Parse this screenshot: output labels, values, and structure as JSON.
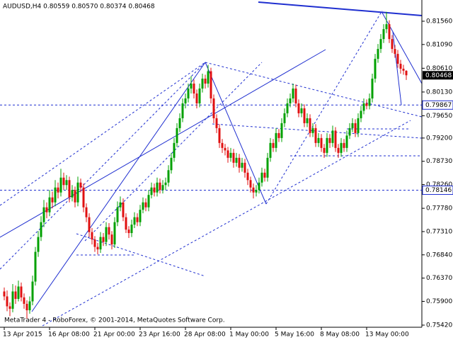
{
  "chart_data": {
    "type": "candlestick",
    "title": "AUDUSD,H4  0.80559 0.80570 0.80374 0.80468",
    "footer": "MetaTrader 4 - RoboForex, © 2001-2014, MetaQuotes Software Corp.",
    "up_color": "#00a000",
    "down_color": "#e01010",
    "ylim": [
      0.75377,
      0.81989
    ],
    "yticks": [
      {
        "value": 0.8156,
        "label": "0.81560"
      },
      {
        "value": 0.8109,
        "label": "0.81090"
      },
      {
        "value": 0.8061,
        "label": "0.80610"
      },
      {
        "value": 0.8013,
        "label": "0.80130"
      },
      {
        "value": 0.7965,
        "label": "0.79650"
      },
      {
        "value": 0.792,
        "label": "0.79200"
      },
      {
        "value": 0.7873,
        "label": "0.78730"
      },
      {
        "value": 0.7826,
        "label": "0.78260"
      },
      {
        "value": 0.7778,
        "label": "0.77780"
      },
      {
        "value": 0.7731,
        "label": "0.77310"
      },
      {
        "value": 0.7684,
        "label": "0.76840"
      },
      {
        "value": 0.7637,
        "label": "0.76370"
      },
      {
        "value": 0.759,
        "label": "0.75900"
      },
      {
        "value": 0.7542,
        "label": "0.75420"
      }
    ],
    "current_price": 0.80468,
    "levels": [
      0.79867,
      0.78146
    ],
    "categories": [
      "13 Apr 2015",
      null,
      null,
      null,
      null,
      null,
      null,
      null,
      null,
      null,
      null,
      null,
      null,
      null,
      null,
      null,
      "16 Apr 08:00",
      null,
      null,
      null,
      null,
      null,
      null,
      null,
      null,
      null,
      null,
      null,
      null,
      null,
      null,
      null,
      "21 Apr 00:00",
      null,
      null,
      null,
      null,
      null,
      null,
      null,
      null,
      null,
      null,
      null,
      null,
      null,
      null,
      null,
      "23 Apr 16:00",
      null,
      null,
      null,
      null,
      null,
      null,
      null,
      null,
      null,
      null,
      null,
      null,
      null,
      null,
      null,
      "28 Apr 08:00",
      null,
      null,
      null,
      null,
      null,
      null,
      null,
      null,
      null,
      null,
      null,
      null,
      null,
      null,
      null,
      "1 May 00:00",
      null,
      null,
      null,
      null,
      null,
      null,
      null,
      null,
      null,
      null,
      null,
      null,
      null,
      null,
      null,
      "5 May 16:00",
      null,
      null,
      null,
      null,
      null,
      null,
      null,
      null,
      null,
      null,
      null,
      null,
      null,
      null,
      null,
      "8 May 08:00",
      null,
      null,
      null,
      null,
      null,
      null,
      null,
      null,
      null,
      null,
      null,
      null,
      null,
      null,
      null,
      "13 May 00:00",
      null,
      null,
      null,
      null,
      null,
      null,
      null,
      null,
      null,
      null,
      null,
      null,
      null,
      null
    ],
    "ohlc": [
      [
        0.761,
        0.7618,
        0.7592,
        0.76
      ],
      [
        0.76,
        0.7612,
        0.757,
        0.758
      ],
      [
        0.758,
        0.7588,
        0.756,
        0.7575
      ],
      [
        0.7575,
        0.7625,
        0.7568,
        0.761
      ],
      [
        0.761,
        0.7622,
        0.7585,
        0.7595
      ],
      [
        0.7595,
        0.7632,
        0.759,
        0.762
      ],
      [
        0.762,
        0.7628,
        0.759,
        0.7598
      ],
      [
        0.7598,
        0.7606,
        0.7575,
        0.7585
      ],
      [
        0.7585,
        0.7592,
        0.7555,
        0.7572
      ],
      [
        0.7572,
        0.76,
        0.7565,
        0.759
      ],
      [
        0.759,
        0.7642,
        0.7582,
        0.763
      ],
      [
        0.763,
        0.77,
        0.7622,
        0.769
      ],
      [
        0.769,
        0.7732,
        0.768,
        0.772
      ],
      [
        0.772,
        0.7762,
        0.7712,
        0.775
      ],
      [
        0.775,
        0.7795,
        0.774,
        0.778
      ],
      [
        0.778,
        0.779,
        0.7758,
        0.777
      ],
      [
        0.777,
        0.7815,
        0.7762,
        0.78
      ],
      [
        0.78,
        0.7812,
        0.7778,
        0.779
      ],
      [
        0.779,
        0.7835,
        0.7782,
        0.782
      ],
      [
        0.782,
        0.783,
        0.7798,
        0.781
      ],
      [
        0.781,
        0.7858,
        0.7802,
        0.784
      ],
      [
        0.784,
        0.785,
        0.7815,
        0.7825
      ],
      [
        0.7825,
        0.7845,
        0.7815,
        0.7835
      ],
      [
        0.7835,
        0.7842,
        0.779,
        0.78
      ],
      [
        0.78,
        0.7825,
        0.7792,
        0.7815
      ],
      [
        0.7815,
        0.7822,
        0.778,
        0.779
      ],
      [
        0.779,
        0.7842,
        0.7782,
        0.783
      ],
      [
        0.783,
        0.7838,
        0.781,
        0.782
      ],
      [
        0.782,
        0.7828,
        0.777,
        0.778
      ],
      [
        0.778,
        0.7788,
        0.775,
        0.776
      ],
      [
        0.776,
        0.7768,
        0.772,
        0.773
      ],
      [
        0.773,
        0.7738,
        0.7705,
        0.7715
      ],
      [
        0.7715,
        0.7722,
        0.769,
        0.77
      ],
      [
        0.77,
        0.7708,
        0.7685,
        0.7695
      ],
      [
        0.7695,
        0.773,
        0.7688,
        0.772
      ],
      [
        0.772,
        0.7728,
        0.7702,
        0.771
      ],
      [
        0.771,
        0.775,
        0.7702,
        0.774
      ],
      [
        0.774,
        0.7748,
        0.7715,
        0.7725
      ],
      [
        0.7725,
        0.7732,
        0.7695,
        0.7705
      ],
      [
        0.7705,
        0.776,
        0.7698,
        0.775
      ],
      [
        0.775,
        0.7792,
        0.7742,
        0.778
      ],
      [
        0.778,
        0.7802,
        0.7772,
        0.779
      ],
      [
        0.779,
        0.7798,
        0.7752,
        0.776
      ],
      [
        0.776,
        0.7768,
        0.7728,
        0.7735
      ],
      [
        0.7735,
        0.7742,
        0.7718,
        0.7728
      ],
      [
        0.7728,
        0.7755,
        0.772,
        0.7745
      ],
      [
        0.7745,
        0.777,
        0.7738,
        0.776
      ],
      [
        0.776,
        0.7768,
        0.7742,
        0.775
      ],
      [
        0.775,
        0.7785,
        0.7742,
        0.7775
      ],
      [
        0.7775,
        0.78,
        0.7768,
        0.779
      ],
      [
        0.779,
        0.7798,
        0.7772,
        0.778
      ],
      [
        0.778,
        0.7815,
        0.7772,
        0.7805
      ],
      [
        0.7805,
        0.783,
        0.7798,
        0.782
      ],
      [
        0.782,
        0.7828,
        0.7802,
        0.781
      ],
      [
        0.781,
        0.784,
        0.7802,
        0.783
      ],
      [
        0.783,
        0.7838,
        0.7808,
        0.7815
      ],
      [
        0.7815,
        0.7835,
        0.7808,
        0.7825
      ],
      [
        0.7825,
        0.784,
        0.7815,
        0.783
      ],
      [
        0.783,
        0.7865,
        0.7822,
        0.7855
      ],
      [
        0.7855,
        0.789,
        0.7848,
        0.788
      ],
      [
        0.788,
        0.792,
        0.7872,
        0.791
      ],
      [
        0.791,
        0.795,
        0.7902,
        0.794
      ],
      [
        0.794,
        0.797,
        0.7932,
        0.796
      ],
      [
        0.796,
        0.8,
        0.7952,
        0.799
      ],
      [
        0.799,
        0.801,
        0.798,
        0.8
      ],
      [
        0.8,
        0.803,
        0.7992,
        0.802
      ],
      [
        0.802,
        0.8045,
        0.801,
        0.803
      ],
      [
        0.803,
        0.8038,
        0.8,
        0.801
      ],
      [
        0.801,
        0.8018,
        0.798,
        0.799
      ],
      [
        0.799,
        0.803,
        0.7982,
        0.802
      ],
      [
        0.802,
        0.805,
        0.8012,
        0.804
      ],
      [
        0.804,
        0.8048,
        0.802,
        0.803
      ],
      [
        0.803,
        0.8068,
        0.8022,
        0.8055
      ],
      [
        0.8055,
        0.8062,
        0.799,
        0.8
      ],
      [
        0.8,
        0.8008,
        0.795,
        0.796
      ],
      [
        0.796,
        0.7968,
        0.793,
        0.794
      ],
      [
        0.794,
        0.7948,
        0.79,
        0.791
      ],
      [
        0.791,
        0.7918,
        0.789,
        0.79
      ],
      [
        0.79,
        0.7908,
        0.7885,
        0.7895
      ],
      [
        0.7895,
        0.7902,
        0.787,
        0.788
      ],
      [
        0.788,
        0.79,
        0.7872,
        0.789
      ],
      [
        0.789,
        0.7898,
        0.786,
        0.787
      ],
      [
        0.787,
        0.789,
        0.7862,
        0.788
      ],
      [
        0.788,
        0.7888,
        0.785,
        0.786
      ],
      [
        0.786,
        0.788,
        0.7852,
        0.787
      ],
      [
        0.787,
        0.7878,
        0.784,
        0.785
      ],
      [
        0.785,
        0.7858,
        0.7825,
        0.7835
      ],
      [
        0.7835,
        0.7842,
        0.781,
        0.782
      ],
      [
        0.782,
        0.7828,
        0.7798,
        0.781
      ],
      [
        0.781,
        0.7825,
        0.7802,
        0.7815
      ],
      [
        0.7815,
        0.784,
        0.7808,
        0.783
      ],
      [
        0.783,
        0.786,
        0.7822,
        0.785
      ],
      [
        0.785,
        0.7858,
        0.7832,
        0.784
      ],
      [
        0.784,
        0.789,
        0.7832,
        0.788
      ],
      [
        0.788,
        0.792,
        0.7872,
        0.791
      ],
      [
        0.791,
        0.7918,
        0.7892,
        0.79
      ],
      [
        0.79,
        0.794,
        0.7892,
        0.793
      ],
      [
        0.793,
        0.7938,
        0.7912,
        0.792
      ],
      [
        0.792,
        0.796,
        0.7912,
        0.795
      ],
      [
        0.795,
        0.798,
        0.7942,
        0.797
      ],
      [
        0.797,
        0.8,
        0.7962,
        0.799
      ],
      [
        0.799,
        0.801,
        0.7982,
        0.8
      ],
      [
        0.8,
        0.803,
        0.7992,
        0.802
      ],
      [
        0.802,
        0.8028,
        0.7982,
        0.799
      ],
      [
        0.799,
        0.7998,
        0.7962,
        0.797
      ],
      [
        0.797,
        0.799,
        0.7962,
        0.798
      ],
      [
        0.798,
        0.7988,
        0.7942,
        0.795
      ],
      [
        0.795,
        0.797,
        0.7942,
        0.796
      ],
      [
        0.796,
        0.7968,
        0.7922,
        0.793
      ],
      [
        0.793,
        0.795,
        0.7922,
        0.794
      ],
      [
        0.794,
        0.7948,
        0.7902,
        0.791
      ],
      [
        0.791,
        0.793,
        0.7902,
        0.792
      ],
      [
        0.792,
        0.7928,
        0.7892,
        0.79
      ],
      [
        0.79,
        0.7908,
        0.788,
        0.789
      ],
      [
        0.789,
        0.793,
        0.7882,
        0.792
      ],
      [
        0.792,
        0.7928,
        0.79,
        0.791
      ],
      [
        0.791,
        0.7945,
        0.7902,
        0.7935
      ],
      [
        0.7935,
        0.7942,
        0.7892,
        0.79
      ],
      [
        0.79,
        0.7908,
        0.788,
        0.789
      ],
      [
        0.789,
        0.792,
        0.7882,
        0.791
      ],
      [
        0.791,
        0.7918,
        0.7892,
        0.79
      ],
      [
        0.79,
        0.7935,
        0.7892,
        0.7925
      ],
      [
        0.7925,
        0.795,
        0.7918,
        0.794
      ],
      [
        0.794,
        0.796,
        0.7932,
        0.795
      ],
      [
        0.795,
        0.7958,
        0.7922,
        0.793
      ],
      [
        0.793,
        0.797,
        0.7922,
        0.796
      ],
      [
        0.796,
        0.7985,
        0.7952,
        0.7975
      ],
      [
        0.7975,
        0.8,
        0.7968,
        0.799
      ],
      [
        0.799,
        0.7998,
        0.7978,
        0.7985
      ],
      [
        0.7985,
        0.801,
        0.7978,
        0.8
      ],
      [
        0.8,
        0.805,
        0.7992,
        0.804
      ],
      [
        0.804,
        0.809,
        0.8032,
        0.808
      ],
      [
        0.808,
        0.811,
        0.8072,
        0.81
      ],
      [
        0.81,
        0.813,
        0.8092,
        0.812
      ],
      [
        0.812,
        0.815,
        0.8112,
        0.814
      ],
      [
        0.814,
        0.8175,
        0.8132,
        0.815
      ],
      [
        0.815,
        0.8158,
        0.8112,
        0.812
      ],
      [
        0.812,
        0.8128,
        0.8092,
        0.81
      ],
      [
        0.81,
        0.8108,
        0.8082,
        0.809
      ],
      [
        0.809,
        0.8098,
        0.8062,
        0.807
      ],
      [
        0.807,
        0.8078,
        0.805,
        0.806
      ],
      [
        0.806,
        0.8068,
        0.8048,
        0.8056
      ],
      [
        0.80559,
        0.8057,
        0.80374,
        0.80468
      ]
    ]
  }
}
